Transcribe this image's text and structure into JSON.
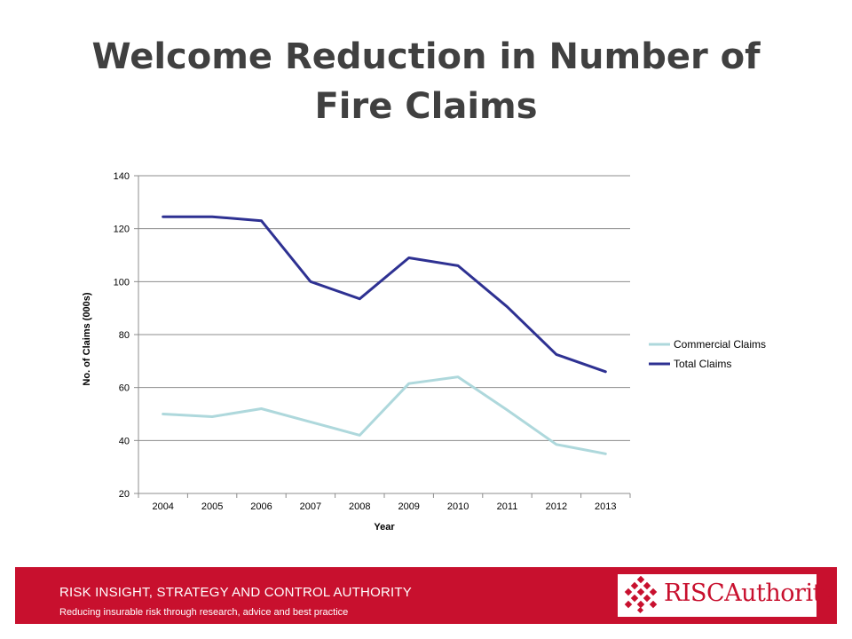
{
  "title": "Welcome Reduction in Number of Fire Claims",
  "footer": {
    "line1": "RISK INSIGHT, STRATEGY AND CONTROL AUTHORITY",
    "line2": "Reducing insurable risk through research, advice and best practice",
    "logo_text": "RISCAuthority"
  },
  "colors": {
    "commercial": "#aed8dc",
    "total": "#2e3192",
    "brand": "#c8102e"
  },
  "chart_data": {
    "type": "line",
    "x": [
      "2004",
      "2005",
      "2006",
      "2007",
      "2008",
      "2009",
      "2010",
      "2011",
      "2012",
      "2013"
    ],
    "series": [
      {
        "name": "Commercial Claims",
        "values": [
          50,
          49,
          52,
          47,
          42,
          61.5,
          64,
          51.5,
          38.5,
          35
        ]
      },
      {
        "name": "Total Claims",
        "values": [
          124.5,
          124.5,
          123,
          100,
          93.5,
          109,
          106,
          90.5,
          72.5,
          66
        ]
      }
    ],
    "xlabel": "Year",
    "ylabel": "No. of Claims (000s)",
    "ylim": [
      20,
      140
    ],
    "yticks": [
      20,
      40,
      60,
      80,
      100,
      120,
      140
    ],
    "grid": true,
    "legend": "right"
  }
}
